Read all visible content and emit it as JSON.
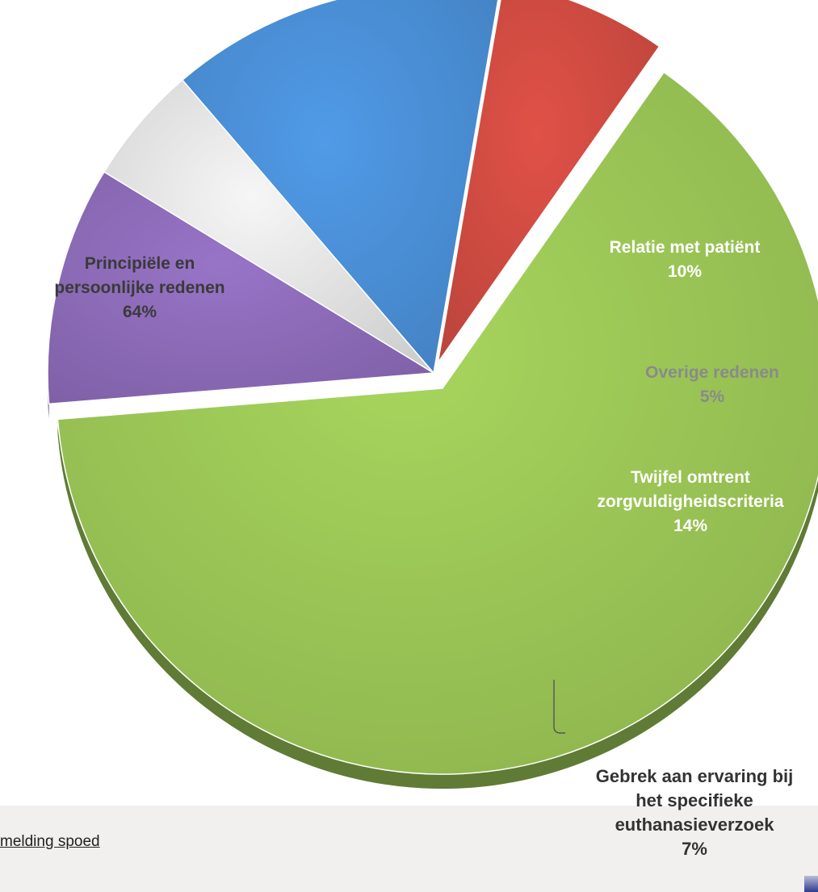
{
  "footer": {
    "link_text": "melding spoed"
  },
  "chart_data": {
    "type": "pie",
    "title": "",
    "style": "3d-exploded",
    "slices": [
      {
        "label_lines": [
          "Principiële en",
          "persoonlijke redenen"
        ],
        "value_label": "64%",
        "value": 64,
        "color": "#9bc656",
        "label_color": "#3a3a3a"
      },
      {
        "label_lines": [
          "Relatie met patiënt"
        ],
        "value_label": "10%",
        "value": 10,
        "color": "#8d6bb8",
        "label_color": "#ffffff"
      },
      {
        "label_lines": [
          "Overige redenen"
        ],
        "value_label": "5%",
        "value": 5,
        "color": "#e4e4e4",
        "label_color": "#8a8a8a"
      },
      {
        "label_lines": [
          "Twijfel omtrent",
          "zorgvuldigheidscriteria"
        ],
        "value_label": "14%",
        "value": 14,
        "color": "#4a8fd6",
        "label_color": "#ffffff"
      },
      {
        "label_lines": [
          "Gebrek aan ervaring bij",
          "het specifieke",
          "euthanasieverzoek"
        ],
        "value_label": "7%",
        "value": 7,
        "color": "#cf4b42",
        "label_color": "#333333"
      }
    ]
  }
}
